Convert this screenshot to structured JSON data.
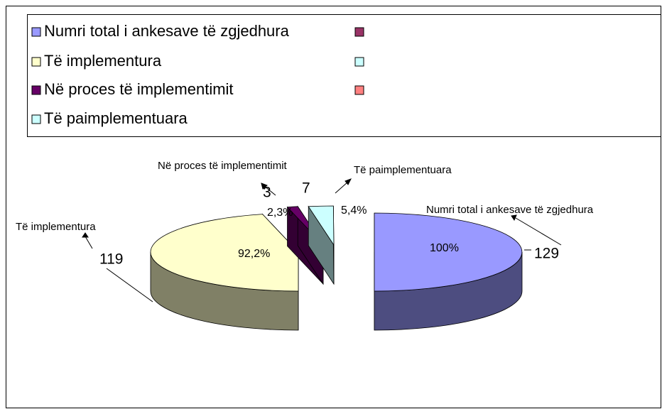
{
  "chart_data": {
    "type": "pie3d",
    "categories": [
      "Numri total i ankesave të zgjedhura",
      "Të implementura",
      "Në proces të implementimit",
      "Të paimplementuara"
    ],
    "values": [
      129,
      119,
      3,
      7
    ],
    "percentages": [
      100,
      92.2,
      2.3,
      5.4
    ],
    "percentage_labels": [
      "100%",
      "92,2%",
      "2,3%",
      "5,4%"
    ],
    "colors": [
      "#9999ff",
      "#ffffcc",
      "#660066",
      "#ccffff"
    ],
    "legend": "top-left"
  }
}
